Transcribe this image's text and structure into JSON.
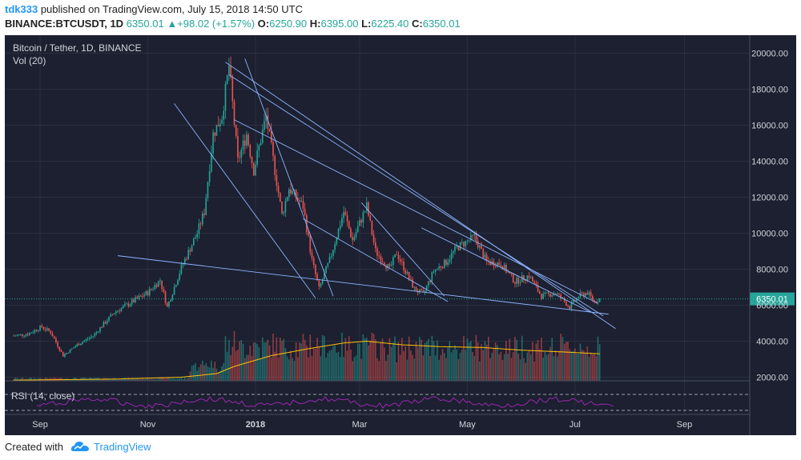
{
  "header": {
    "author": "tdk333",
    "published_text": "published on TradingView.com, July 15, 2018 14:50 UTC",
    "symbol": "BINANCE:BTCUSDT, 1D",
    "last": "6350.01",
    "change": "+98.02 (+1.57%)",
    "o_label": "O:",
    "o": "6250.90",
    "h_label": "H:",
    "h": "6395.00",
    "l_label": "L:",
    "l": "6225.40",
    "c_label": "C:",
    "c": "6350.01"
  },
  "legend": {
    "title": "Bitcoin / Tether, 1D, BINANCE",
    "vol": "Vol (20)",
    "rsi": "RSI (14, close)"
  },
  "footer": {
    "created": "Created with",
    "brand": "TradingView"
  },
  "colors": {
    "background": "#1c2030",
    "up": "#26a69a",
    "down": "#ef5350",
    "trendline": "#8fb5ff",
    "rsi": "#9c27b0",
    "vol_ma": "#ffc107",
    "price_line": "#26a69a"
  },
  "chart_data": {
    "type": "candlestick",
    "title": "Bitcoin / Tether, 1D, BINANCE",
    "y_ticks": [
      2000,
      4000,
      6000,
      8000,
      10000,
      12000,
      14000,
      16000,
      18000,
      20000
    ],
    "y_tick_labels": [
      "2000.00",
      "4000.00",
      "6000.00",
      "8000.00",
      "10000.00",
      "12000.00",
      "14000.00",
      "16000.00",
      "18000.00",
      "20000.00"
    ],
    "ylim": [
      1800,
      21000
    ],
    "x_ticks": [
      "2017-09-01",
      "2017-11-01",
      "2018-01-01",
      "2018-03-01",
      "2018-05-01",
      "2018-07-01",
      "2018-09-01"
    ],
    "x_tick_labels": [
      "Sep",
      "Nov",
      "2018",
      "Mar",
      "May",
      "Jul",
      "Sep"
    ],
    "xlim": [
      "2017-08-12",
      "2018-10-08"
    ],
    "last_price": 6350.01,
    "last_price_label": "6350.01",
    "price_path": [
      [
        "2017-08-17",
        4300
      ],
      [
        "2017-08-25",
        4400
      ],
      [
        "2017-09-02",
        4800
      ],
      [
        "2017-09-07",
        4500
      ],
      [
        "2017-09-14",
        3200
      ],
      [
        "2017-09-22",
        3800
      ],
      [
        "2017-10-01",
        4300
      ],
      [
        "2017-10-13",
        5600
      ],
      [
        "2017-10-20",
        6000
      ],
      [
        "2017-11-01",
        6700
      ],
      [
        "2017-11-08",
        7400
      ],
      [
        "2017-11-12",
        5900
      ],
      [
        "2017-11-20",
        8100
      ],
      [
        "2017-11-29",
        10000
      ],
      [
        "2017-12-03",
        11200
      ],
      [
        "2017-12-08",
        15500
      ],
      [
        "2017-12-13",
        16500
      ],
      [
        "2017-12-17",
        19300
      ],
      [
        "2017-12-22",
        14000
      ],
      [
        "2017-12-27",
        15500
      ],
      [
        "2017-12-31",
        13500
      ],
      [
        "2018-01-07",
        16500
      ],
      [
        "2018-01-12",
        13500
      ],
      [
        "2018-01-16",
        11000
      ],
      [
        "2018-01-20",
        12500
      ],
      [
        "2018-01-28",
        11500
      ],
      [
        "2018-02-02",
        8500
      ],
      [
        "2018-02-06",
        6900
      ],
      [
        "2018-02-12",
        8500
      ],
      [
        "2018-02-20",
        11200
      ],
      [
        "2018-02-25",
        9600
      ],
      [
        "2018-03-05",
        11500
      ],
      [
        "2018-03-10",
        9000
      ],
      [
        "2018-03-18",
        8000
      ],
      [
        "2018-03-22",
        8900
      ],
      [
        "2018-04-01",
        6900
      ],
      [
        "2018-04-06",
        6600
      ],
      [
        "2018-04-12",
        7900
      ],
      [
        "2018-04-19",
        8400
      ],
      [
        "2018-04-25",
        9200
      ],
      [
        "2018-05-05",
        9800
      ],
      [
        "2018-05-12",
        8400
      ],
      [
        "2018-05-20",
        8300
      ],
      [
        "2018-05-28",
        7300
      ],
      [
        "2018-06-05",
        7650
      ],
      [
        "2018-06-12",
        6500
      ],
      [
        "2018-06-20",
        6700
      ],
      [
        "2018-06-28",
        5900
      ],
      [
        "2018-07-03",
        6500
      ],
      [
        "2018-07-08",
        6700
      ],
      [
        "2018-07-12",
        6200
      ],
      [
        "2018-07-15",
        6350
      ]
    ],
    "trendlines": [
      [
        [
          "2017-12-15",
          19500
        ],
        [
          "2018-07-24",
          4700
        ]
      ],
      [
        [
          "2017-12-17",
          18800
        ],
        [
          "2018-07-17",
          5400
        ]
      ],
      [
        [
          "2017-12-20",
          16300
        ],
        [
          "2018-07-14",
          6100
        ]
      ],
      [
        [
          "2017-12-26",
          19700
        ],
        [
          "2018-02-14",
          6500
        ]
      ],
      [
        [
          "2017-11-16",
          17200
        ],
        [
          "2018-02-04",
          6400
        ]
      ],
      [
        [
          "2017-10-15",
          8750
        ],
        [
          "2018-07-20",
          5500
        ]
      ],
      [
        [
          "2018-01-28",
          10800
        ],
        [
          "2018-04-20",
          6200
        ]
      ],
      [
        [
          "2018-04-05",
          10300
        ],
        [
          "2018-07-10",
          5600
        ]
      ],
      [
        [
          "2018-03-02",
          11700
        ],
        [
          "2018-04-18",
          6500
        ]
      ]
    ],
    "volume_ma_path": [
      [
        "2017-08-17",
        1830
      ],
      [
        "2017-10-15",
        1900
      ],
      [
        "2017-11-20",
        2000
      ],
      [
        "2017-12-10",
        2200
      ],
      [
        "2017-12-20",
        2600
      ],
      [
        "2018-01-10",
        3200
      ],
      [
        "2018-02-01",
        3600
      ],
      [
        "2018-02-20",
        3900
      ],
      [
        "2018-03-05",
        4000
      ],
      [
        "2018-03-25",
        3800
      ],
      [
        "2018-04-15",
        3700
      ],
      [
        "2018-05-10",
        3650
      ],
      [
        "2018-06-01",
        3500
      ],
      [
        "2018-06-25",
        3400
      ],
      [
        "2018-07-15",
        3300
      ]
    ]
  }
}
